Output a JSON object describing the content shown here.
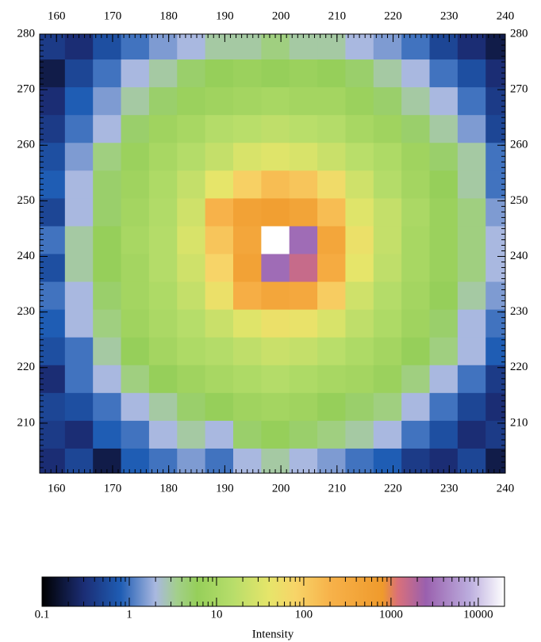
{
  "chart_data": {
    "type": "heatmap",
    "x": [
      159,
      164,
      169,
      174,
      179,
      184,
      189,
      194,
      199,
      204,
      209,
      214,
      219,
      224,
      229,
      234,
      239
    ],
    "y": [
      203,
      208,
      213,
      218,
      223,
      228,
      233,
      238,
      243,
      248,
      253,
      258,
      263,
      268,
      273,
      278
    ],
    "z": [
      [
        0.3,
        0.5,
        0.2,
        0.8,
        1,
        1.5,
        1,
        2,
        3,
        2,
        1.5,
        1,
        0.8,
        0.4,
        0.3,
        0.5,
        0.2
      ],
      [
        0.4,
        0.3,
        0.8,
        1,
        2,
        3,
        2,
        5,
        6,
        5,
        4,
        3,
        2,
        1,
        0.6,
        0.3,
        0.4
      ],
      [
        0.5,
        0.6,
        1,
        2,
        3,
        5,
        6,
        8,
        9,
        8,
        6,
        5,
        4,
        2,
        1,
        0.5,
        0.3
      ],
      [
        0.3,
        1,
        2,
        4,
        6,
        8,
        10,
        12,
        14,
        12,
        10,
        9,
        7,
        4,
        2,
        1,
        0.4
      ],
      [
        0.6,
        1,
        3,
        6,
        9,
        12,
        14,
        18,
        22,
        20,
        16,
        12,
        9,
        6,
        4,
        2,
        0.8
      ],
      [
        0.8,
        2,
        4,
        8,
        11,
        15,
        22,
        35,
        50,
        45,
        30,
        18,
        12,
        8,
        5,
        2,
        1
      ],
      [
        1,
        2,
        5,
        9,
        12,
        20,
        50,
        250,
        400,
        350,
        100,
        25,
        14,
        9,
        6,
        3,
        1.5
      ],
      [
        0.6,
        3,
        6,
        9,
        14,
        25,
        80,
        500,
        3000,
        1500,
        300,
        40,
        18,
        10,
        7,
        4,
        2
      ],
      [
        1,
        3,
        6,
        10,
        14,
        30,
        120,
        400,
        20000,
        3000,
        400,
        50,
        20,
        10,
        7,
        4,
        2
      ],
      [
        0.5,
        2,
        5,
        9,
        13,
        25,
        200,
        500,
        600,
        450,
        150,
        35,
        20,
        11,
        7,
        4,
        1.5
      ],
      [
        0.8,
        2,
        5,
        8,
        12,
        20,
        40,
        90,
        150,
        120,
        60,
        25,
        14,
        9,
        6,
        3,
        1
      ],
      [
        0.6,
        1.5,
        4,
        7,
        10,
        14,
        20,
        30,
        35,
        30,
        22,
        16,
        12,
        8,
        5,
        3,
        1
      ],
      [
        0.4,
        1,
        2,
        5,
        8,
        10,
        14,
        16,
        18,
        16,
        14,
        10,
        8,
        5,
        3,
        1.5,
        0.5
      ],
      [
        0.3,
        0.8,
        1.5,
        3,
        5,
        7,
        8,
        9,
        10,
        9,
        9,
        7,
        5,
        3,
        2,
        1,
        0.4
      ],
      [
        0.2,
        0.5,
        1,
        2,
        3,
        5,
        6,
        7,
        6,
        7,
        6,
        5,
        3,
        2,
        1,
        0.6,
        0.3
      ],
      [
        0.4,
        0.3,
        0.6,
        1,
        1.5,
        2,
        3,
        3,
        4,
        3,
        3,
        2,
        1.5,
        1,
        0.5,
        0.3,
        0.2
      ]
    ],
    "xlim": [
      157,
      240
    ],
    "ylim": [
      201,
      280
    ],
    "xticks": [
      160,
      170,
      180,
      190,
      200,
      210,
      220,
      230,
      240
    ],
    "yticks": [
      210,
      220,
      230,
      240,
      250,
      260,
      270,
      280
    ],
    "minor_tick_step": 1,
    "colorbar": {
      "label": "Intensity",
      "log": true,
      "lim": [
        0.1,
        20000
      ],
      "ticks": [
        0.1,
        1,
        10,
        100,
        1000,
        10000
      ],
      "colorscale": [
        [
          0.1,
          "#000000"
        ],
        [
          0.3,
          "#1b2d74"
        ],
        [
          0.8,
          "#1f5db4"
        ],
        [
          2,
          "#a9b8e0"
        ],
        [
          3.5,
          "#a3cf8c"
        ],
        [
          6,
          "#96cf5a"
        ],
        [
          15,
          "#b6dd6a"
        ],
        [
          40,
          "#e6e56a"
        ],
        [
          80,
          "#f7d468"
        ],
        [
          200,
          "#f7b24a"
        ],
        [
          800,
          "#ef9a2c"
        ],
        [
          1200,
          "#d9707a"
        ],
        [
          2500,
          "#9a60ae"
        ],
        [
          8000,
          "#bcaede"
        ],
        [
          20000,
          "#ffffff"
        ]
      ]
    }
  }
}
